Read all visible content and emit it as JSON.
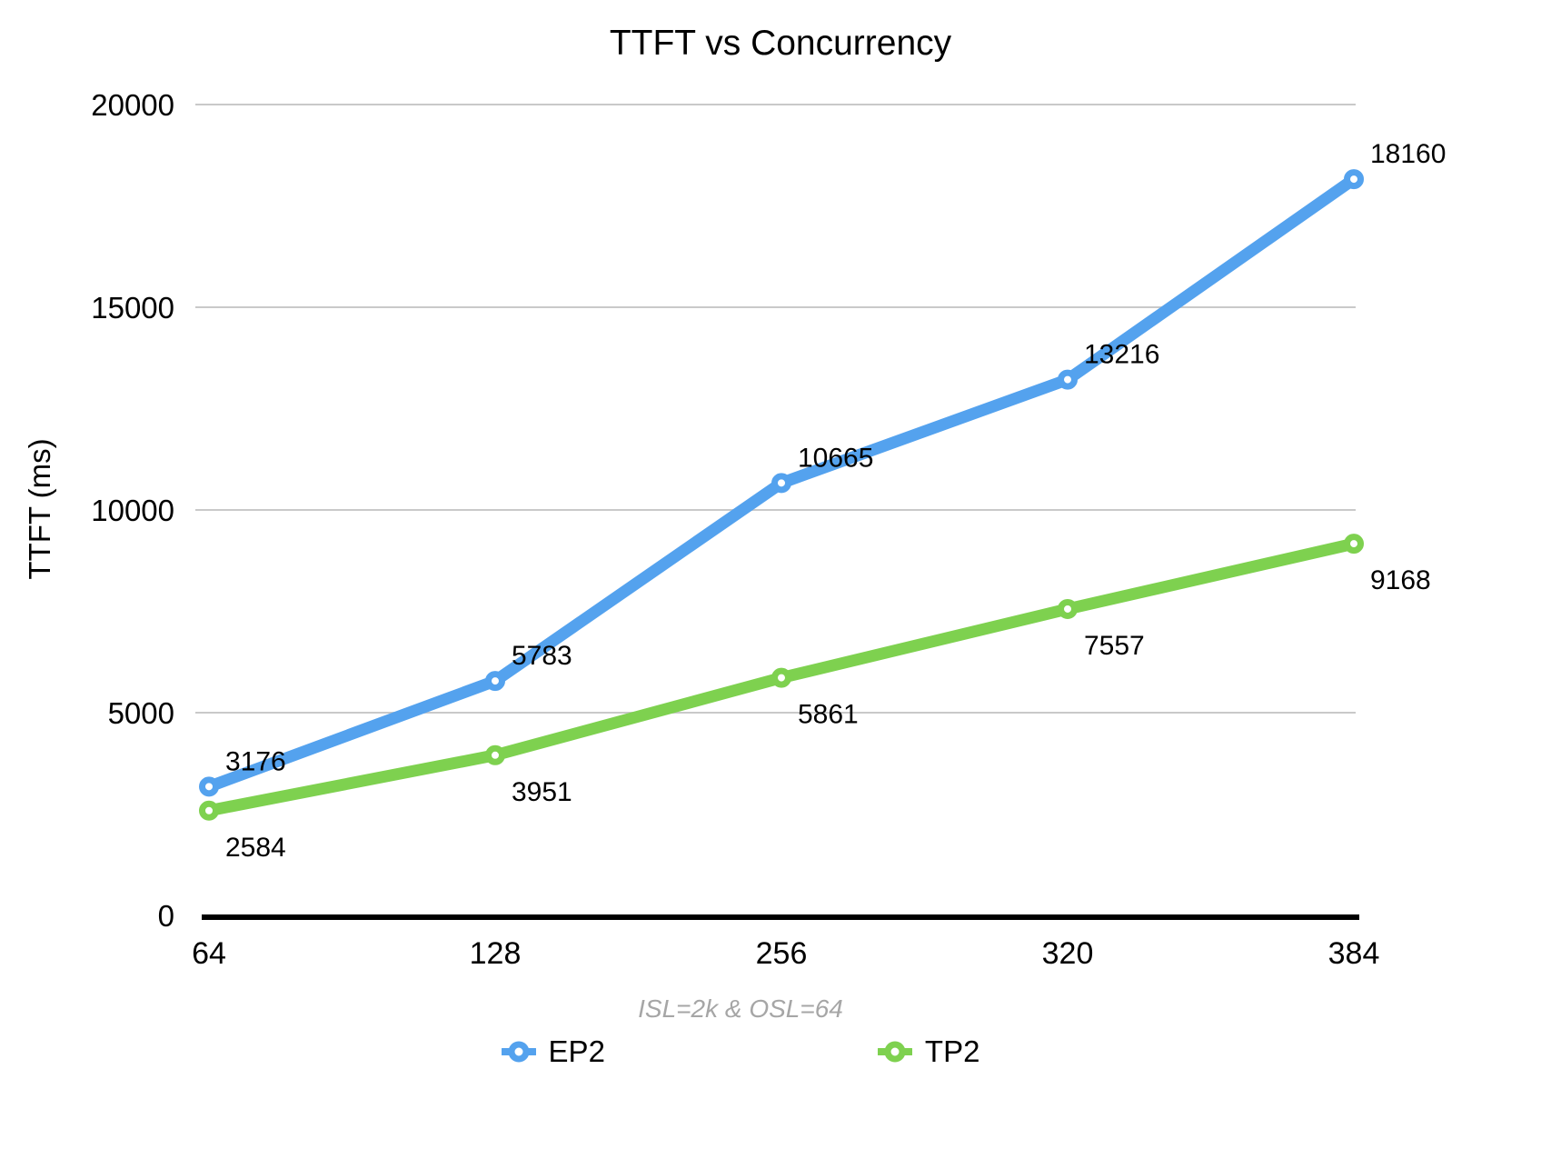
{
  "chart_data": {
    "type": "line",
    "title": "TTFT vs Concurrency",
    "subtitle": "ISL=2k & OSL=64",
    "ylabel": "TTFT (ms)",
    "xlabel": "",
    "x_categories": [
      "64",
      "128",
      "256",
      "320",
      "384"
    ],
    "y_ticks": [
      0,
      5000,
      10000,
      15000,
      20000
    ],
    "ylim": [
      0,
      20000
    ],
    "grid": "horizontal",
    "legend_position": "bottom",
    "colors": {
      "gridline": "#c9c9c9",
      "axis": "#000000",
      "subtitle_text": "#a6a6a6",
      "marker_hole": "#ffffff"
    },
    "series": [
      {
        "name": "EP2",
        "color": "#54a2ee",
        "values": [
          3176,
          5783,
          10665,
          13216,
          18160
        ],
        "label_position": "above"
      },
      {
        "name": "TP2",
        "color": "#7ed14f",
        "values": [
          2584,
          3951,
          5861,
          7557,
          9168
        ],
        "label_position": "below"
      }
    ]
  }
}
